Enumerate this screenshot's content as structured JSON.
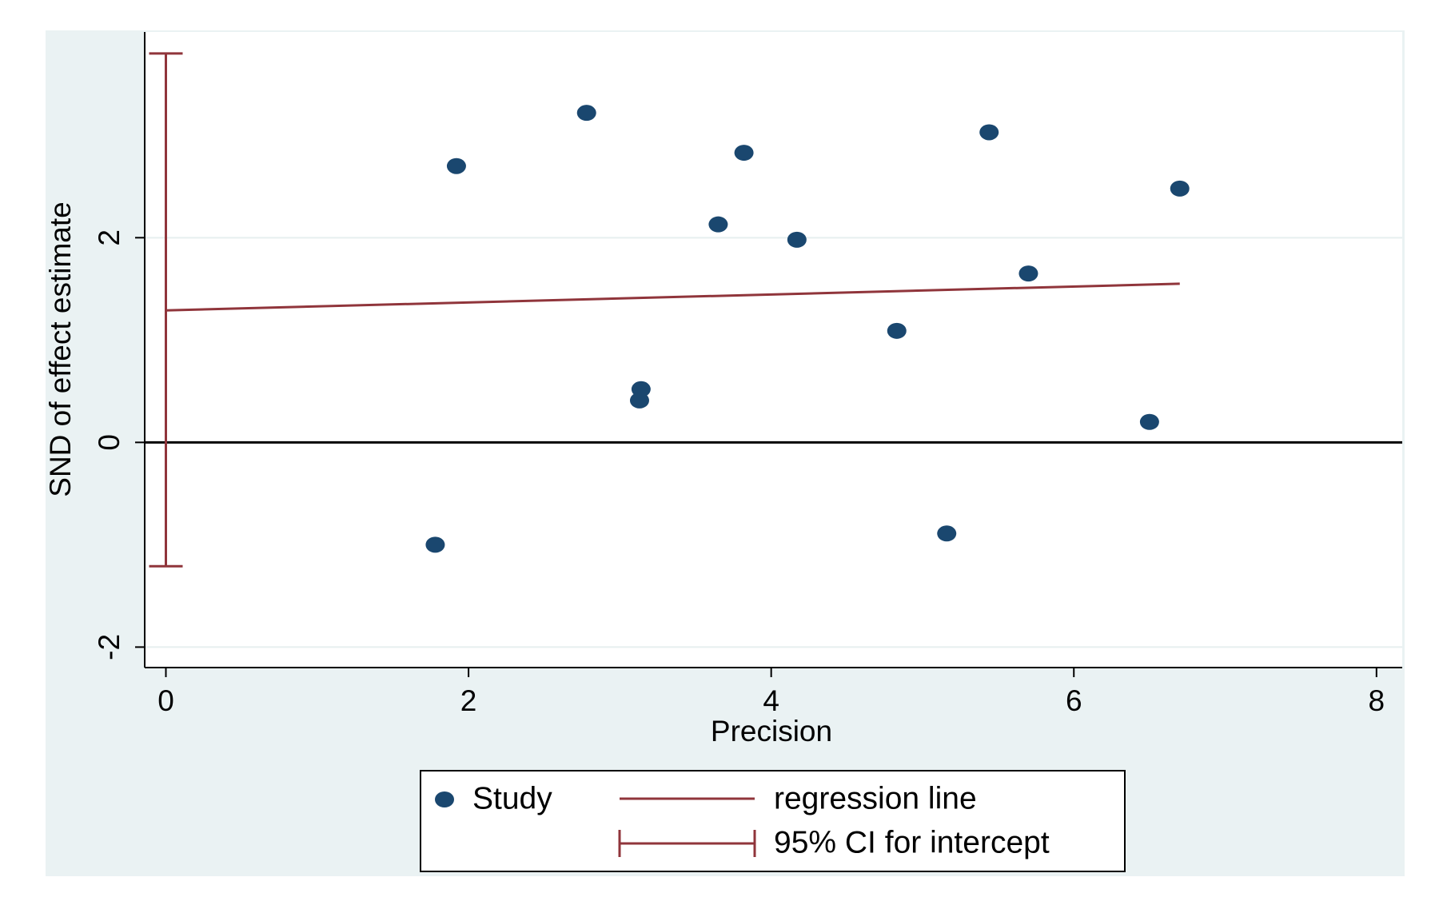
{
  "chart_data": {
    "type": "scatter",
    "x_label": "Precision",
    "y_label": "SND of effect estimate",
    "xlim": [
      -0.14,
      8.17
    ],
    "ylim": [
      -2.2,
      4.01
    ],
    "xticks": [
      0,
      2,
      4,
      6,
      8
    ],
    "yticks": [
      -2,
      0,
      2
    ],
    "grid": true,
    "reference_line": 0,
    "series": [
      {
        "name": "Study",
        "color": "#1a476f",
        "x": [
          1.78,
          1.92,
          2.78,
          3.14,
          3.13,
          3.65,
          3.82,
          4.17,
          4.83,
          5.16,
          5.44,
          5.7,
          6.5,
          6.7
        ],
        "values": [
          -1.0,
          2.7,
          3.22,
          0.52,
          0.41,
          2.13,
          2.83,
          1.98,
          1.09,
          -0.89,
          3.03,
          1.65,
          0.2,
          2.48
        ]
      },
      {
        "name": "regression line",
        "color": "#90353b",
        "x": [
          0,
          6.7
        ],
        "values": [
          1.29,
          1.55
        ]
      }
    ],
    "ci": {
      "name": "95% CI for intercept",
      "color": "#90353b",
      "x": 0,
      "lower": -1.21,
      "upper": 3.8
    }
  }
}
